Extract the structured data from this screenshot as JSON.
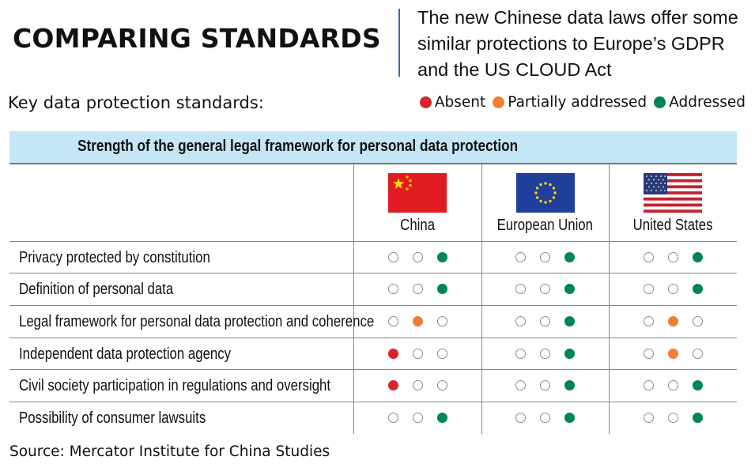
{
  "title": "COMPARING STANDARDS",
  "subtitle": "The new Chinese data laws offer some similar protections to Europe’s GDPR and the US CLOUD Act",
  "key_label": "Key data protection standards:",
  "legend": [
    {
      "label": "Absent",
      "color": "#d9232e"
    },
    {
      "label": "Partially addressed",
      "color": "#f07f33"
    },
    {
      "label": "Addressed",
      "color": "#00845a"
    }
  ],
  "source": "Source: Mercator Institute for China Studies",
  "chart_data": {
    "type": "table",
    "title": "Strength of the general legal framework for personal data protection",
    "columns": [
      "China",
      "European Union",
      "United States"
    ],
    "rows": [
      {
        "label": "Privacy protected by constitution",
        "values": [
          "Addressed",
          "Addressed",
          "Addressed"
        ]
      },
      {
        "label": "Definition of personal data",
        "values": [
          "Addressed",
          "Addressed",
          "Addressed"
        ]
      },
      {
        "label": "Legal framework for personal data protection and coherence",
        "values": [
          "Partially addressed",
          "Addressed",
          "Partially addressed"
        ]
      },
      {
        "label": "Independent data protection agency",
        "values": [
          "Absent",
          "Addressed",
          "Partially addressed"
        ]
      },
      {
        "label": "Civil society participation in regulations and oversight",
        "values": [
          "Absent",
          "Addressed",
          "Addressed"
        ]
      },
      {
        "label": "Possibility of consumer lawsuits",
        "values": [
          "Addressed",
          "Addressed",
          "Addressed"
        ]
      }
    ]
  }
}
